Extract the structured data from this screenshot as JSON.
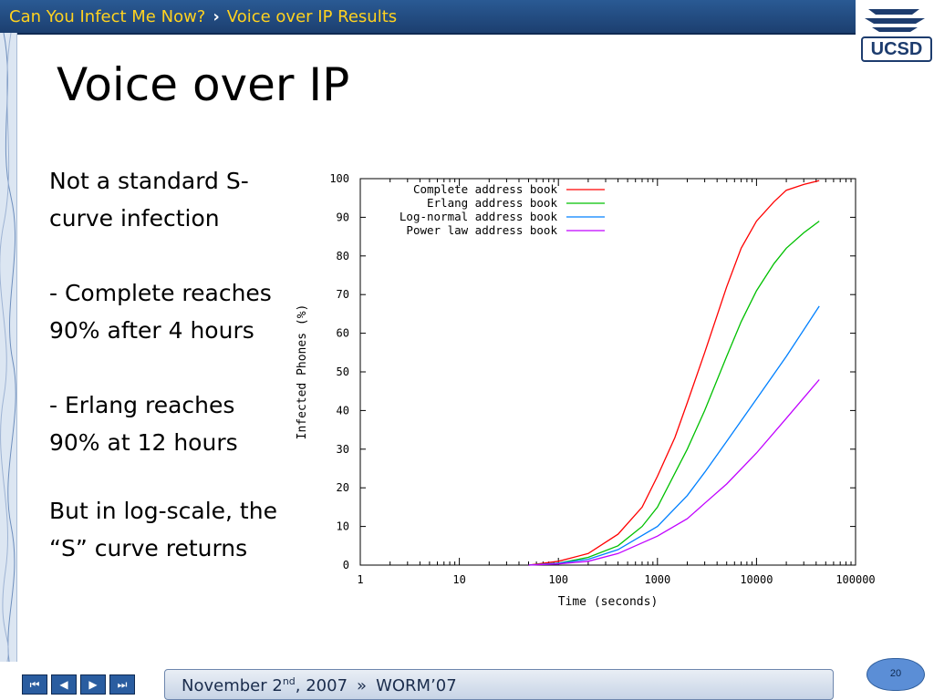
{
  "header": {
    "breadcrumb": [
      "Can You Infect Me Now?",
      "Voice over IP Results"
    ],
    "separator": "›"
  },
  "logo": {
    "text": "UCSD"
  },
  "slide": {
    "title": "Voice over IP",
    "bullets": [
      "Not a standard S-curve infection",
      "- Complete reaches 90% after 4 hours",
      "- Erlang reaches 90% at 12 hours",
      "But in log-scale, the “S” curve returns"
    ]
  },
  "footer": {
    "date_main": "November 2",
    "date_sup": "nd",
    "date_year": ", 2007",
    "separator": "»",
    "venue": "WORM’07",
    "page_number": "20"
  },
  "nav": {
    "first": "⏮",
    "prev": "◀",
    "next": "▶",
    "last": "⏭"
  },
  "chart_data": {
    "type": "line",
    "xlabel": "Time (seconds)",
    "ylabel": "Infected Phones (%)",
    "xscale": "log",
    "xlim": [
      1,
      100000
    ],
    "ylim": [
      0,
      100
    ],
    "xticks": [
      1,
      10,
      100,
      1000,
      10000,
      100000
    ],
    "xtick_labels": [
      "1",
      "10",
      "100",
      "1000",
      "10000",
      "100000"
    ],
    "yticks": [
      0,
      10,
      20,
      30,
      40,
      50,
      60,
      70,
      80,
      90,
      100
    ],
    "legend_position": "top-left",
    "grid": false,
    "series": [
      {
        "name": "Complete address book",
        "color": "#ff0000",
        "x": [
          50,
          100,
          200,
          400,
          700,
          1000,
          1500,
          2000,
          3000,
          5000,
          7000,
          10000,
          15000,
          20000,
          30000,
          43000
        ],
        "y": [
          0,
          1,
          3,
          8,
          15,
          23,
          33,
          42,
          55,
          72,
          82,
          89,
          94,
          97,
          98.5,
          99.5
        ]
      },
      {
        "name": "Erlang address book",
        "color": "#00c000",
        "x": [
          50,
          100,
          200,
          400,
          700,
          1000,
          2000,
          3000,
          5000,
          7000,
          10000,
          15000,
          20000,
          30000,
          43000
        ],
        "y": [
          0,
          0.5,
          2,
          5,
          10,
          15,
          30,
          40,
          54,
          63,
          71,
          78,
          82,
          86,
          89
        ]
      },
      {
        "name": "Log-normal address book",
        "color": "#0080ff",
        "x": [
          50,
          100,
          200,
          400,
          1000,
          2000,
          3000,
          5000,
          10000,
          20000,
          43000
        ],
        "y": [
          0,
          0.5,
          1.5,
          4,
          10,
          18,
          24,
          32,
          43,
          54,
          67
        ]
      },
      {
        "name": "Power law address book",
        "color": "#c000ff",
        "x": [
          50,
          100,
          200,
          400,
          1000,
          2000,
          3000,
          5000,
          10000,
          20000,
          43000
        ],
        "y": [
          0,
          0.3,
          1,
          3,
          7.5,
          12,
          16,
          21,
          29,
          38,
          48
        ]
      }
    ]
  }
}
